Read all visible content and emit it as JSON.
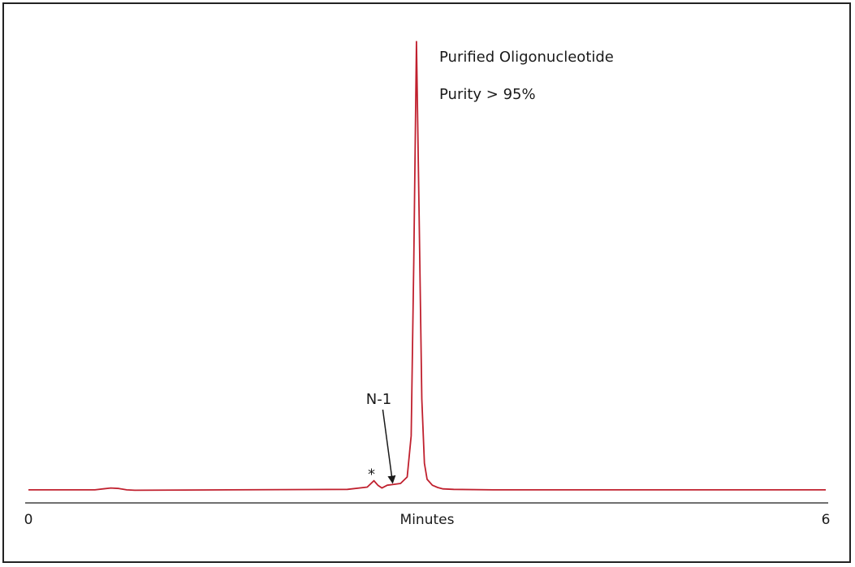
{
  "chart_data": {
    "type": "line",
    "title": "",
    "xlabel": "Minutes",
    "ylabel": "",
    "xlim": [
      0,
      6
    ],
    "ylim": [
      0,
      1
    ],
    "x_ticks": [
      {
        "value": 0,
        "label": "0"
      },
      {
        "value": 6,
        "label": "6"
      }
    ],
    "grid": false,
    "legend": "none",
    "series": [
      {
        "color": "#c0202e",
        "x": [
          0,
          0.5,
          0.62,
          0.68,
          0.74,
          0.8,
          1.5,
          2.4,
          2.55,
          2.6,
          2.63,
          2.66,
          2.7,
          2.75,
          2.8,
          2.85,
          2.88,
          2.9,
          2.92,
          2.94,
          2.96,
          2.98,
          3.0,
          3.04,
          3.08,
          3.12,
          3.2,
          3.5,
          4.5,
          6
        ],
        "y": [
          0.002,
          0.002,
          0.006,
          0.005,
          0.002,
          0.001,
          0.002,
          0.003,
          0.008,
          0.022,
          0.012,
          0.006,
          0.012,
          0.014,
          0.016,
          0.03,
          0.12,
          0.5,
          0.98,
          0.6,
          0.2,
          0.06,
          0.025,
          0.012,
          0.007,
          0.004,
          0.003,
          0.002,
          0.002,
          0.002
        ]
      }
    ],
    "annotations": [
      {
        "text": "Purified Oligonucleotide"
      },
      {
        "text": "Purity > 95%"
      },
      {
        "text": "N-1",
        "points_to": {
          "x": 2.74,
          "y": 0.015
        }
      },
      {
        "text": "*",
        "marks": {
          "x": 2.6,
          "y": 0.022
        }
      }
    ]
  }
}
